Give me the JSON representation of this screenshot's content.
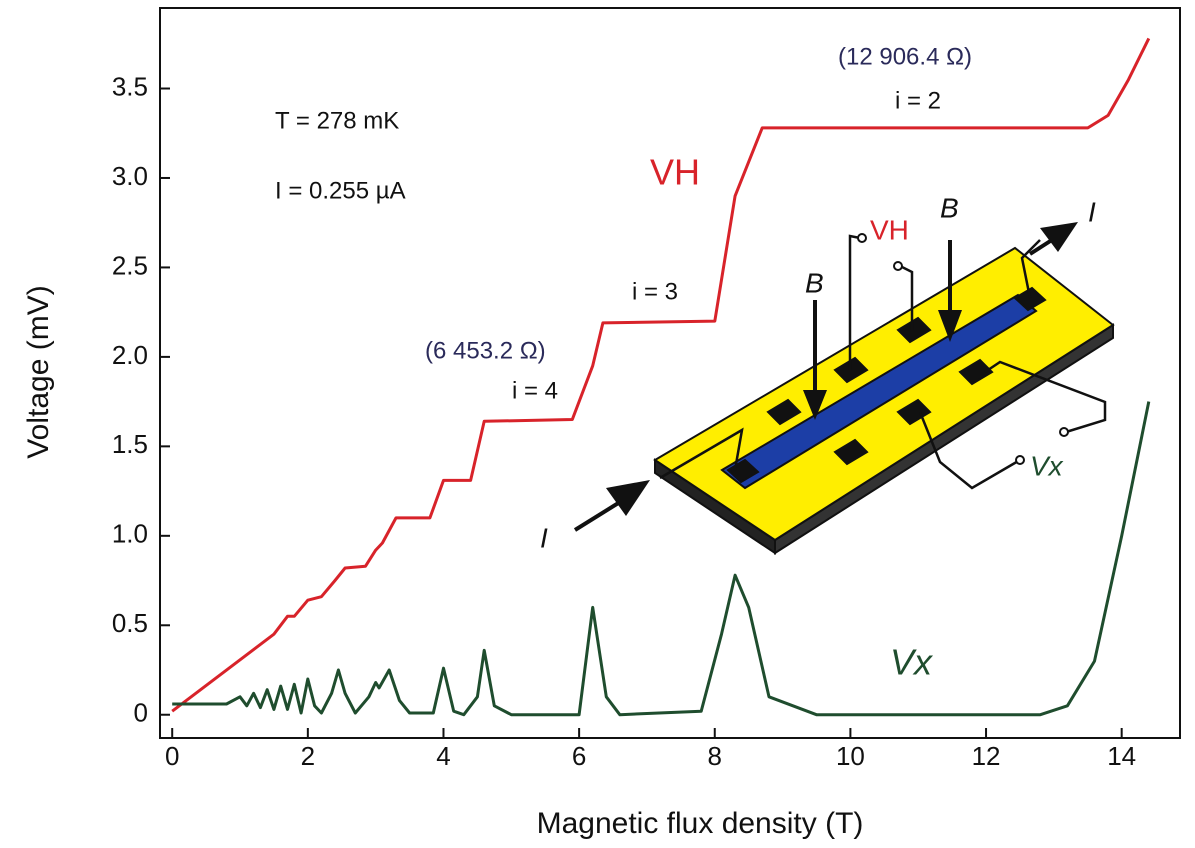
{
  "chart_data": {
    "type": "line",
    "xlabel": "Magnetic flux density    (T)",
    "ylabel": "Voltage  (mV)",
    "xlim": [
      -0.18,
      14.86
    ],
    "ylim": [
      -0.13,
      3.95
    ],
    "xticks": [
      0,
      2,
      4,
      6,
      8,
      10,
      12,
      14
    ],
    "yticks": [
      0,
      0.5,
      {
        "value": 1.0,
        "label": "1.0"
      },
      1.5,
      {
        "value": 2.0,
        "label": "2.0"
      },
      2.5,
      {
        "value": 3.0,
        "label": "3.0"
      },
      3.5
    ],
    "grid": false,
    "series": [
      {
        "name": "VH",
        "color": "#d8232a",
        "x": [
          0,
          1.5,
          1.7,
          1.8,
          2.0,
          2.2,
          2.4,
          2.55,
          2.85,
          3.0,
          3.1,
          3.3,
          3.8,
          4.0,
          4.4,
          4.6,
          5.9,
          6.2,
          6.35,
          8.0,
          8.3,
          8.7,
          13.5,
          13.8,
          14.1,
          14.4
        ],
        "values": [
          0.02,
          0.45,
          0.55,
          0.55,
          0.64,
          0.66,
          0.75,
          0.82,
          0.83,
          0.92,
          0.96,
          1.1,
          1.1,
          1.31,
          1.31,
          1.64,
          1.65,
          1.95,
          2.19,
          2.2,
          2.9,
          3.28,
          3.28,
          3.35,
          3.55,
          3.78
        ]
      },
      {
        "name": "Vx",
        "color": "#1f4d2e",
        "x": [
          0,
          0.8,
          1.0,
          1.1,
          1.2,
          1.3,
          1.4,
          1.5,
          1.6,
          1.7,
          1.8,
          1.9,
          2.0,
          2.1,
          2.2,
          2.35,
          2.45,
          2.55,
          2.7,
          2.9,
          3.0,
          3.05,
          3.2,
          3.35,
          3.5,
          3.85,
          4.0,
          4.15,
          4.3,
          4.5,
          4.6,
          4.75,
          5.0,
          6.0,
          6.2,
          6.4,
          6.6,
          7.8,
          8.1,
          8.3,
          8.5,
          8.8,
          9.5,
          12.8,
          13.2,
          13.6,
          14.0,
          14.4
        ],
        "values": [
          0.06,
          0.06,
          0.1,
          0.05,
          0.12,
          0.04,
          0.14,
          0.03,
          0.16,
          0.03,
          0.17,
          0.01,
          0.2,
          0.05,
          0.01,
          0.12,
          0.25,
          0.12,
          0.01,
          0.1,
          0.18,
          0.15,
          0.25,
          0.08,
          0.01,
          0.01,
          0.26,
          0.02,
          0.0,
          0.1,
          0.36,
          0.05,
          0.0,
          0.0,
          0.6,
          0.1,
          0.0,
          0.02,
          0.45,
          0.78,
          0.6,
          0.1,
          0.0,
          0.0,
          0.05,
          0.3,
          1.0,
          1.75
        ]
      }
    ],
    "annotations": [
      "T = 278 mK",
      "I = 0.255 µA",
      "(12 906.4 Ω)",
      "i = 2",
      "i = 3",
      "(6 453.2 Ω)",
      "i = 4"
    ],
    "inset_labels": [
      "VH",
      "B",
      "B",
      "I",
      "I",
      "Vx"
    ]
  }
}
